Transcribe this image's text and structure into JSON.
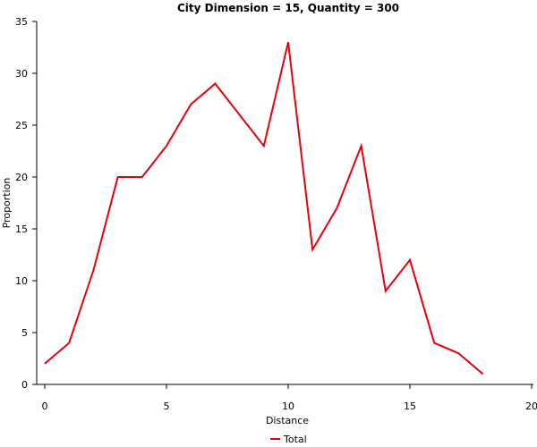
{
  "chart_data": {
    "type": "line",
    "title": "City Dimension = 15, Quantity = 300",
    "xlabel": "Distance",
    "ylabel": "Proportion",
    "xlim": [
      0,
      20
    ],
    "ylim": [
      0,
      35
    ],
    "xticks": [
      0,
      5,
      10,
      15,
      20
    ],
    "yticks": [
      0,
      5,
      10,
      15,
      20,
      25,
      30,
      35
    ],
    "grid": false,
    "legend_position": "bottom-center",
    "series": [
      {
        "name": "Total",
        "color": "#e8000b",
        "x": [
          0,
          1,
          2,
          3,
          4,
          5,
          6,
          7,
          8,
          9,
          10,
          11,
          12,
          13,
          14,
          15,
          16,
          17,
          18
        ],
        "y": [
          2,
          4,
          11,
          20,
          20,
          23,
          27,
          29,
          26,
          23,
          33,
          13,
          17,
          23,
          9,
          12,
          4,
          3,
          1
        ]
      }
    ]
  }
}
